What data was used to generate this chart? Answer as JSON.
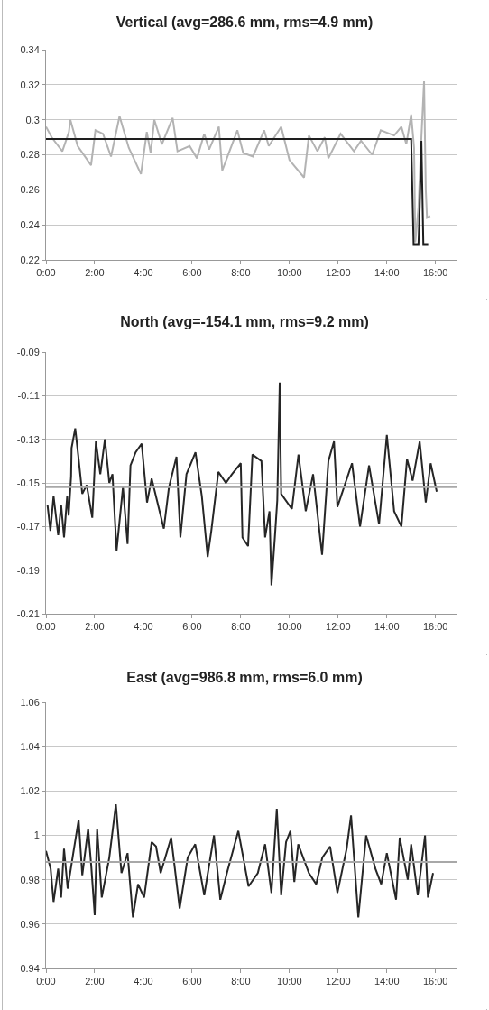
{
  "chart_data": [
    {
      "type": "line",
      "title": "Vertical (avg=286.6 mm, rms=4.9 mm)",
      "xlim": [
        0,
        16.9
      ],
      "xticks": [
        {
          "value": 0,
          "label": "0:00"
        },
        {
          "value": 2,
          "label": "2:00"
        },
        {
          "value": 4,
          "label": "4:00"
        },
        {
          "value": 6,
          "label": "6:00"
        },
        {
          "value": 8,
          "label": "8:00"
        },
        {
          "value": 10,
          "label": "10:00"
        },
        {
          "value": 12,
          "label": "12:00"
        },
        {
          "value": 14,
          "label": "14:00"
        },
        {
          "value": 16,
          "label": "16:00"
        }
      ],
      "ylim": [
        0.22,
        0.34
      ],
      "yticks": [
        0.22,
        0.24,
        0.26,
        0.28,
        0.3,
        0.32,
        0.34
      ],
      "grid": "y",
      "line_style": "solid",
      "series": [
        {
          "color": "#b3b3b3",
          "x": [
            0,
            0.23,
            0.67,
            0.94,
            1.0,
            1.3,
            1.85,
            2.03,
            2.34,
            2.67,
            3.02,
            3.4,
            3.9,
            4.14,
            4.3,
            4.45,
            4.76,
            5.2,
            5.4,
            5.9,
            6.2,
            6.5,
            6.7,
            7.1,
            7.24,
            7.86,
            8.1,
            8.5,
            8.96,
            9.15,
            9.66,
            10.0,
            10.6,
            10.8,
            11.15,
            11.45,
            11.6,
            12.1,
            12.65,
            12.94,
            13.4,
            13.75,
            14.3,
            14.6,
            14.8,
            15.0,
            15.12,
            15.17,
            15.3,
            15.42,
            15.53,
            15.6,
            15.65,
            15.78
          ],
          "values": [
            0.296,
            0.29,
            0.282,
            0.293,
            0.3,
            0.285,
            0.274,
            0.294,
            0.292,
            0.279,
            0.302,
            0.284,
            0.269,
            0.293,
            0.281,
            0.3,
            0.286,
            0.301,
            0.282,
            0.285,
            0.278,
            0.292,
            0.283,
            0.296,
            0.271,
            0.294,
            0.281,
            0.279,
            0.294,
            0.285,
            0.296,
            0.277,
            0.267,
            0.291,
            0.282,
            0.29,
            0.278,
            0.292,
            0.282,
            0.288,
            0.28,
            0.294,
            0.291,
            0.296,
            0.286,
            0.303,
            0.284,
            0.23,
            0.25,
            0.29,
            0.322,
            0.26,
            0.244,
            0.245
          ]
        },
        {
          "color": "#1e1e1e",
          "x": [
            0,
            15.0,
            15.1,
            15.3,
            15.35,
            15.42,
            15.5,
            15.7
          ],
          "values": [
            0.289,
            0.289,
            0.229,
            0.229,
            0.25,
            0.288,
            0.229,
            0.229
          ]
        }
      ]
    },
    {
      "type": "line",
      "title": "North (avg=-154.1 mm, rms=9.2 mm)",
      "xlim": [
        0,
        16.9
      ],
      "xticks": [
        {
          "value": 0,
          "label": "0:00"
        },
        {
          "value": 2,
          "label": "2:00"
        },
        {
          "value": 4,
          "label": "4:00"
        },
        {
          "value": 6,
          "label": "6:00"
        },
        {
          "value": 8,
          "label": "8:00"
        },
        {
          "value": 10,
          "label": "10:00"
        },
        {
          "value": 12,
          "label": "12:00"
        },
        {
          "value": 14,
          "label": "14:00"
        },
        {
          "value": 16,
          "label": "16:00"
        }
      ],
      "ylim": [
        -0.21,
        -0.09
      ],
      "yticks": [
        -0.21,
        -0.19,
        -0.17,
        -0.15,
        -0.13,
        -0.11,
        -0.09
      ],
      "grid": "y",
      "line_style": "solid",
      "ref_lines": [
        {
          "axis": "y",
          "value": -0.152,
          "color": "#a8a8a8"
        }
      ],
      "series": [
        {
          "color": "#262626",
          "x": [
            0.06,
            0.18,
            0.31,
            0.5,
            0.62,
            0.74,
            0.87,
            0.93,
            1.03,
            1.05,
            1.2,
            1.32,
            1.49,
            1.67,
            1.9,
            2.05,
            2.23,
            2.42,
            2.6,
            2.73,
            2.9,
            3.16,
            3.35,
            3.47,
            3.68,
            3.93,
            4.15,
            4.34,
            4.84,
            5.05,
            5.36,
            5.52,
            5.77,
            6.14,
            6.4,
            6.64,
            6.79,
            7.08,
            7.39,
            7.64,
            8.0,
            8.07,
            8.3,
            8.48,
            8.85,
            9.0,
            9.18,
            9.26,
            9.4,
            9.5,
            9.6,
            9.66,
            10.1,
            10.37,
            10.67,
            10.97,
            11.34,
            11.6,
            11.83,
            11.97,
            12.57,
            12.9,
            13.27,
            13.68,
            14.0,
            14.3,
            14.6,
            14.83,
            15.06,
            15.35,
            15.6,
            15.8,
            16.05
          ],
          "values": [
            -0.16,
            -0.172,
            -0.156,
            -0.174,
            -0.16,
            -0.175,
            -0.156,
            -0.165,
            -0.147,
            -0.134,
            -0.125,
            -0.137,
            -0.155,
            -0.151,
            -0.166,
            -0.131,
            -0.146,
            -0.13,
            -0.15,
            -0.146,
            -0.181,
            -0.152,
            -0.178,
            -0.142,
            -0.136,
            -0.132,
            -0.159,
            -0.148,
            -0.171,
            -0.152,
            -0.138,
            -0.175,
            -0.146,
            -0.136,
            -0.156,
            -0.184,
            -0.172,
            -0.145,
            -0.15,
            -0.146,
            -0.141,
            -0.175,
            -0.179,
            -0.137,
            -0.14,
            -0.175,
            -0.163,
            -0.197,
            -0.175,
            -0.158,
            -0.104,
            -0.155,
            -0.162,
            -0.137,
            -0.163,
            -0.146,
            -0.183,
            -0.14,
            -0.131,
            -0.161,
            -0.141,
            -0.17,
            -0.142,
            -0.169,
            -0.128,
            -0.163,
            -0.17,
            -0.139,
            -0.149,
            -0.131,
            -0.159,
            -0.141,
            -0.154
          ]
        }
      ]
    },
    {
      "type": "line",
      "title": "East (avg=986.8 mm, rms=6.0 mm)",
      "xlim": [
        0,
        16.9
      ],
      "xticks": [
        {
          "value": 0,
          "label": "0:00"
        },
        {
          "value": 2,
          "label": "2:00"
        },
        {
          "value": 4,
          "label": "4:00"
        },
        {
          "value": 6,
          "label": "6:00"
        },
        {
          "value": 8,
          "label": "8:00"
        },
        {
          "value": 10,
          "label": "10:00"
        },
        {
          "value": 12,
          "label": "12:00"
        },
        {
          "value": 14,
          "label": "14:00"
        },
        {
          "value": 16,
          "label": "16:00"
        }
      ],
      "ylim": [
        0.94,
        1.06
      ],
      "yticks": [
        0.94,
        0.96,
        0.98,
        1,
        1.02,
        1.04,
        1.06
      ],
      "grid": "y",
      "line_style": "solid",
      "ref_lines": [
        {
          "axis": "y",
          "value": 0.988,
          "color": "#a8a8a8"
        }
      ],
      "series": [
        {
          "color": "#262626",
          "x": [
            0,
            0.19,
            0.31,
            0.5,
            0.62,
            0.74,
            0.89,
            1.12,
            1.34,
            1.49,
            1.73,
            1.86,
            2.0,
            2.1,
            2.29,
            2.6,
            2.87,
            3.1,
            3.35,
            3.57,
            3.78,
            4.03,
            4.34,
            4.52,
            4.71,
            5.14,
            5.49,
            5.82,
            6.13,
            6.5,
            6.9,
            7.16,
            7.43,
            7.9,
            8.32,
            8.7,
            9.0,
            9.26,
            9.48,
            9.66,
            9.86,
            10.04,
            10.2,
            10.36,
            10.8,
            11.1,
            11.35,
            11.67,
            11.97,
            12.35,
            12.53,
            12.83,
            13.15,
            13.53,
            13.77,
            14.0,
            14.38,
            14.53,
            14.86,
            15.0,
            15.27,
            15.57,
            15.69,
            15.9
          ],
          "values": [
            0.993,
            0.985,
            0.97,
            0.985,
            0.972,
            0.994,
            0.976,
            0.992,
            1.007,
            0.982,
            1.003,
            0.986,
            0.964,
            1.003,
            0.972,
            0.99,
            1.014,
            0.983,
            0.992,
            0.963,
            0.978,
            0.972,
            0.997,
            0.995,
            0.983,
            0.999,
            0.967,
            0.99,
            0.996,
            0.973,
            1.0,
            0.971,
            0.983,
            1.002,
            0.977,
            0.983,
            0.996,
            0.974,
            1.012,
            0.973,
            0.997,
            1.002,
            0.979,
            0.996,
            0.983,
            0.978,
            0.99,
            0.995,
            0.974,
            0.994,
            1.009,
            0.963,
            1.0,
            0.985,
            0.978,
            0.992,
            0.971,
            0.999,
            0.98,
            0.996,
            0.973,
            1.0,
            0.972,
            0.983
          ]
        }
      ]
    }
  ]
}
